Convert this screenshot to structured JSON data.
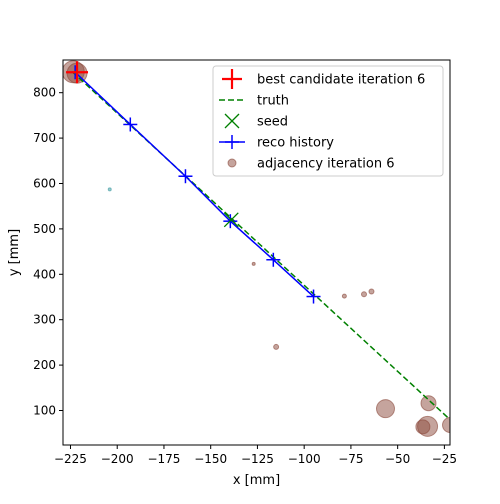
{
  "chart_data": {
    "type": "scatter",
    "xlabel": "x [mm]",
    "ylabel": "y [mm]",
    "xlim": [
      -229,
      -22
    ],
    "ylim": [
      24,
      872
    ],
    "xticks": [
      -225,
      -200,
      -175,
      -150,
      -125,
      -100,
      -75,
      -50,
      -25
    ],
    "xtick_labels": [
      "−225",
      "−200",
      "−175",
      "−150",
      "−125",
      "−100",
      "−75",
      "−50",
      "−25"
    ],
    "yticks": [
      100,
      200,
      300,
      400,
      500,
      600,
      700,
      800
    ],
    "ytick_labels": [
      "100",
      "200",
      "300",
      "400",
      "500",
      "600",
      "700",
      "800"
    ],
    "grid": false,
    "legend_position": "top-right",
    "series": [
      {
        "name": "best candidate iteration 6",
        "kind": "marker",
        "marker": "plus",
        "color": "#ff0000",
        "x": [
          -221.5
        ],
        "y": [
          845
        ]
      },
      {
        "name": "truth",
        "kind": "line",
        "dash": true,
        "color": "#008000",
        "x": [
          -224,
          -22
        ],
        "y": [
          846,
          80
        ]
      },
      {
        "name": "seed",
        "kind": "marker",
        "marker": "x",
        "color": "#008000",
        "x": [
          -139
        ],
        "y": [
          520
        ]
      },
      {
        "name": "reco history",
        "kind": "line_markers",
        "marker": "plus",
        "color": "#0000ff",
        "x": [
          -222.5,
          -193,
          -163.5,
          -139.5,
          -116.5,
          -95
        ],
        "y": [
          845,
          730,
          616,
          517,
          432,
          351
        ]
      },
      {
        "name": "adjacency iteration 6",
        "kind": "bubbles",
        "color": "#8b4a3c",
        "points": [
          {
            "x": -223.5,
            "y": 846,
            "r": 11
          },
          {
            "x": -221.5,
            "y": 843,
            "r": 10
          },
          {
            "x": -204,
            "y": 587,
            "r": 1.5,
            "color": "#3a9aa0"
          },
          {
            "x": -127,
            "y": 423,
            "r": 1.5
          },
          {
            "x": -115,
            "y": 240,
            "r": 2.5
          },
          {
            "x": -78.5,
            "y": 352,
            "r": 2
          },
          {
            "x": -68,
            "y": 356,
            "r": 2.5
          },
          {
            "x": -64,
            "y": 362,
            "r": 2.5
          },
          {
            "x": -56.5,
            "y": 104,
            "r": 9
          },
          {
            "x": -33.5,
            "y": 116,
            "r": 7.5
          },
          {
            "x": -36.5,
            "y": 64,
            "r": 7
          },
          {
            "x": -34,
            "y": 65,
            "r": 10
          },
          {
            "x": -22,
            "y": 68,
            "r": 7.5
          }
        ]
      }
    ]
  }
}
